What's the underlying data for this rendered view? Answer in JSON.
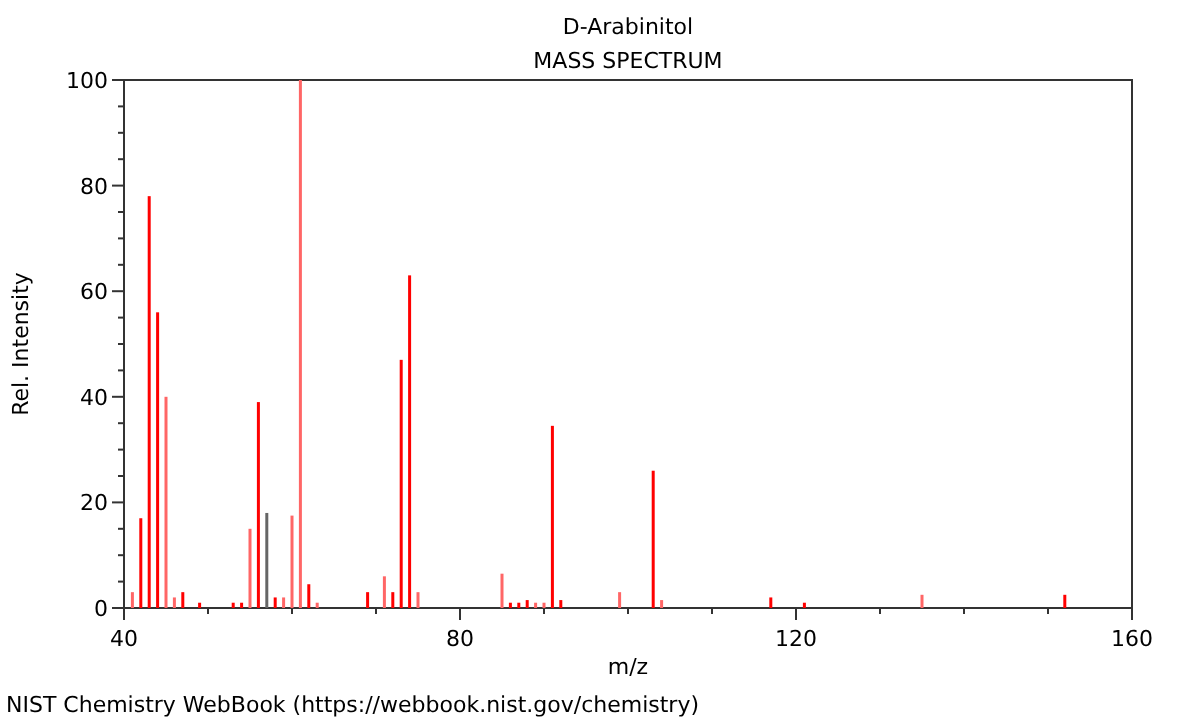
{
  "chart_data": {
    "type": "bar",
    "title": "D-Arabinitol",
    "subtitle": "MASS SPECTRUM",
    "xlabel": "m/z",
    "ylabel": "Rel. Intensity",
    "x": [
      41,
      42,
      43,
      44,
      45,
      46,
      47,
      49,
      53,
      54,
      55,
      56,
      57,
      58,
      59,
      60,
      61,
      62,
      63,
      69,
      71,
      72,
      73,
      74,
      75,
      85,
      86,
      87,
      88,
      89,
      90,
      91,
      92,
      99,
      103,
      104,
      117,
      121,
      135,
      152
    ],
    "values": [
      3,
      17,
      78,
      56,
      40,
      2,
      3,
      1,
      1,
      1,
      15,
      39,
      18,
      2,
      2,
      17.5,
      100,
      4.5,
      1,
      3,
      6,
      3,
      47,
      63,
      3,
      6.5,
      1,
      1,
      1.5,
      1,
      1,
      34.5,
      1.5,
      3,
      26,
      1.5,
      2,
      1,
      2.5,
      2.5
    ],
    "colors": [
      "#ff6666",
      "#ff0000",
      "#ff0000",
      "#ff0000",
      "#ff6666",
      "#ff6666",
      "#ff0000",
      "#ff0000",
      "#ff0000",
      "#ff0000",
      "#ff6666",
      "#ff0000",
      "#666666",
      "#ff0000",
      "#ff6666",
      "#ff6666",
      "#ff6666",
      "#ff0000",
      "#ff6666",
      "#ff0000",
      "#ff6666",
      "#ff0000",
      "#ff0000",
      "#ff0000",
      "#ff6666",
      "#ff6666",
      "#ff0000",
      "#ff0000",
      "#ff0000",
      "#ff6666",
      "#ff6666",
      "#ff0000",
      "#ff0000",
      "#ff6666",
      "#ff0000",
      "#ff6666",
      "#ff0000",
      "#ff0000",
      "#ff6666",
      "#ff0000"
    ],
    "xlim": [
      40,
      160
    ],
    "xticks": [
      40,
      {
        "value": 50,
        "label": null
      },
      {
        "value": 60,
        "label": null
      },
      {
        "value": 70,
        "label": null
      },
      80,
      {
        "value": 90,
        "label": null
      },
      {
        "value": 100,
        "label": null
      },
      {
        "value": 110,
        "label": null
      },
      120,
      {
        "value": 130,
        "label": null
      },
      {
        "value": 140,
        "label": null
      },
      {
        "value": 150,
        "label": null
      },
      160
    ],
    "ylim": [
      0,
      100
    ],
    "yticks": [
      0,
      {
        "value": 5,
        "label": null
      },
      {
        "value": 10,
        "label": null
      },
      {
        "value": 15,
        "label": null
      },
      20,
      {
        "value": 25,
        "label": null
      },
      {
        "value": 30,
        "label": null
      },
      {
        "value": 35,
        "label": null
      },
      40,
      {
        "value": 45,
        "label": null
      },
      {
        "value": 50,
        "label": null
      },
      {
        "value": 55,
        "label": null
      },
      60,
      {
        "value": 65,
        "label": null
      },
      {
        "value": 70,
        "label": null
      },
      {
        "value": 75,
        "label": null
      },
      80,
      {
        "value": 85,
        "label": null
      },
      {
        "value": 90,
        "label": null
      },
      {
        "value": 95,
        "label": null
      },
      100
    ],
    "annotations": [
      "NIST Chemistry WebBook (https://webbook.nist.gov/chemistry)"
    ]
  }
}
